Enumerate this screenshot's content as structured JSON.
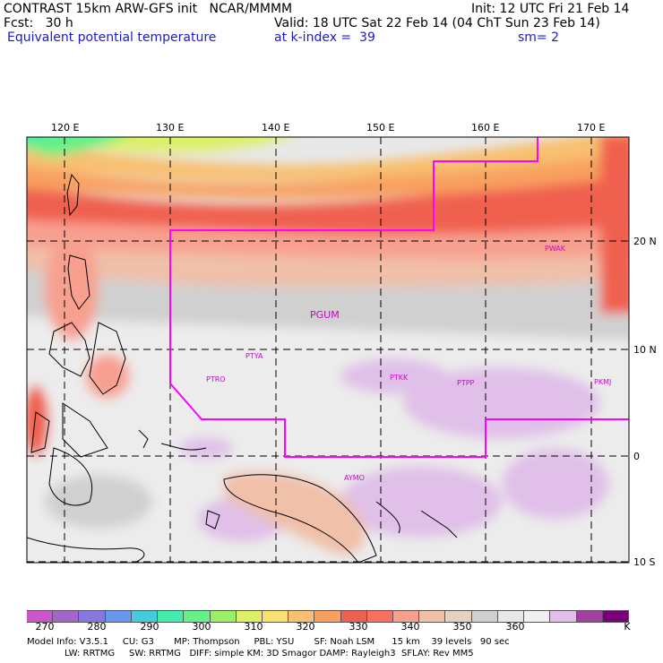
{
  "header": {
    "line1_left": "CONTRAST 15km ARW-GFS init   NCAR/MMMM",
    "line1_right": "Init: 12 UTC Fri 21 Feb 14",
    "line2_left": "Fcst:   30 h",
    "line2_right": "Valid: 18 UTC Sat 22 Feb 14 (04 ChT Sun 23 Feb 14)",
    "line3_left": "Equivalent potential temperature",
    "line3_mid": "at k-index =  39",
    "line3_right": "sm= 2"
  },
  "map": {
    "lon_labels": [
      "120 E",
      "130 E",
      "140 E",
      "150 E",
      "160 E",
      "170 E"
    ],
    "lat_labels": [
      "20 N",
      "10 N",
      "0",
      "10 S"
    ],
    "stations": [
      "PWAK",
      "PGUM",
      "PTYA",
      "PTRO",
      "PTKK",
      "PTPP",
      "PKMJ",
      "AYMO"
    ],
    "colors": {
      "boundary": "#ff00ff",
      "station": "#d000d0",
      "grid": "#000000"
    }
  },
  "colorbar": {
    "colors": [
      "#cc55cc",
      "#a066cc",
      "#8877dd",
      "#6699ee",
      "#44ccdd",
      "#44eeaa",
      "#66f088",
      "#99f066",
      "#ddf066",
      "#f8e070",
      "#f8c070",
      "#f8a060",
      "#f06050",
      "#f87060",
      "#f8a090",
      "#f0c0a8",
      "#e8d0c0",
      "#d0d0d0",
      "#e8e8e8",
      "#f0f0f0",
      "#e0c0e8",
      "#a040a0",
      "#7a007a"
    ],
    "labels": [
      "270",
      "280",
      "290",
      "300",
      "310",
      "320",
      "330",
      "340",
      "350",
      "360",
      "K"
    ]
  },
  "footer": {
    "line1": "Model Info: V3.5.1     CU: G3       MP: Thompson     PBL: YSU       SF: Noah LSM      15 km    39 levels   90 sec",
    "line2": "LW: RRTMG     SW: RRTMG   DIFF: simple KM: 3D Smagor DAMP: Rayleigh3  SFLAY: Rev MM5"
  }
}
